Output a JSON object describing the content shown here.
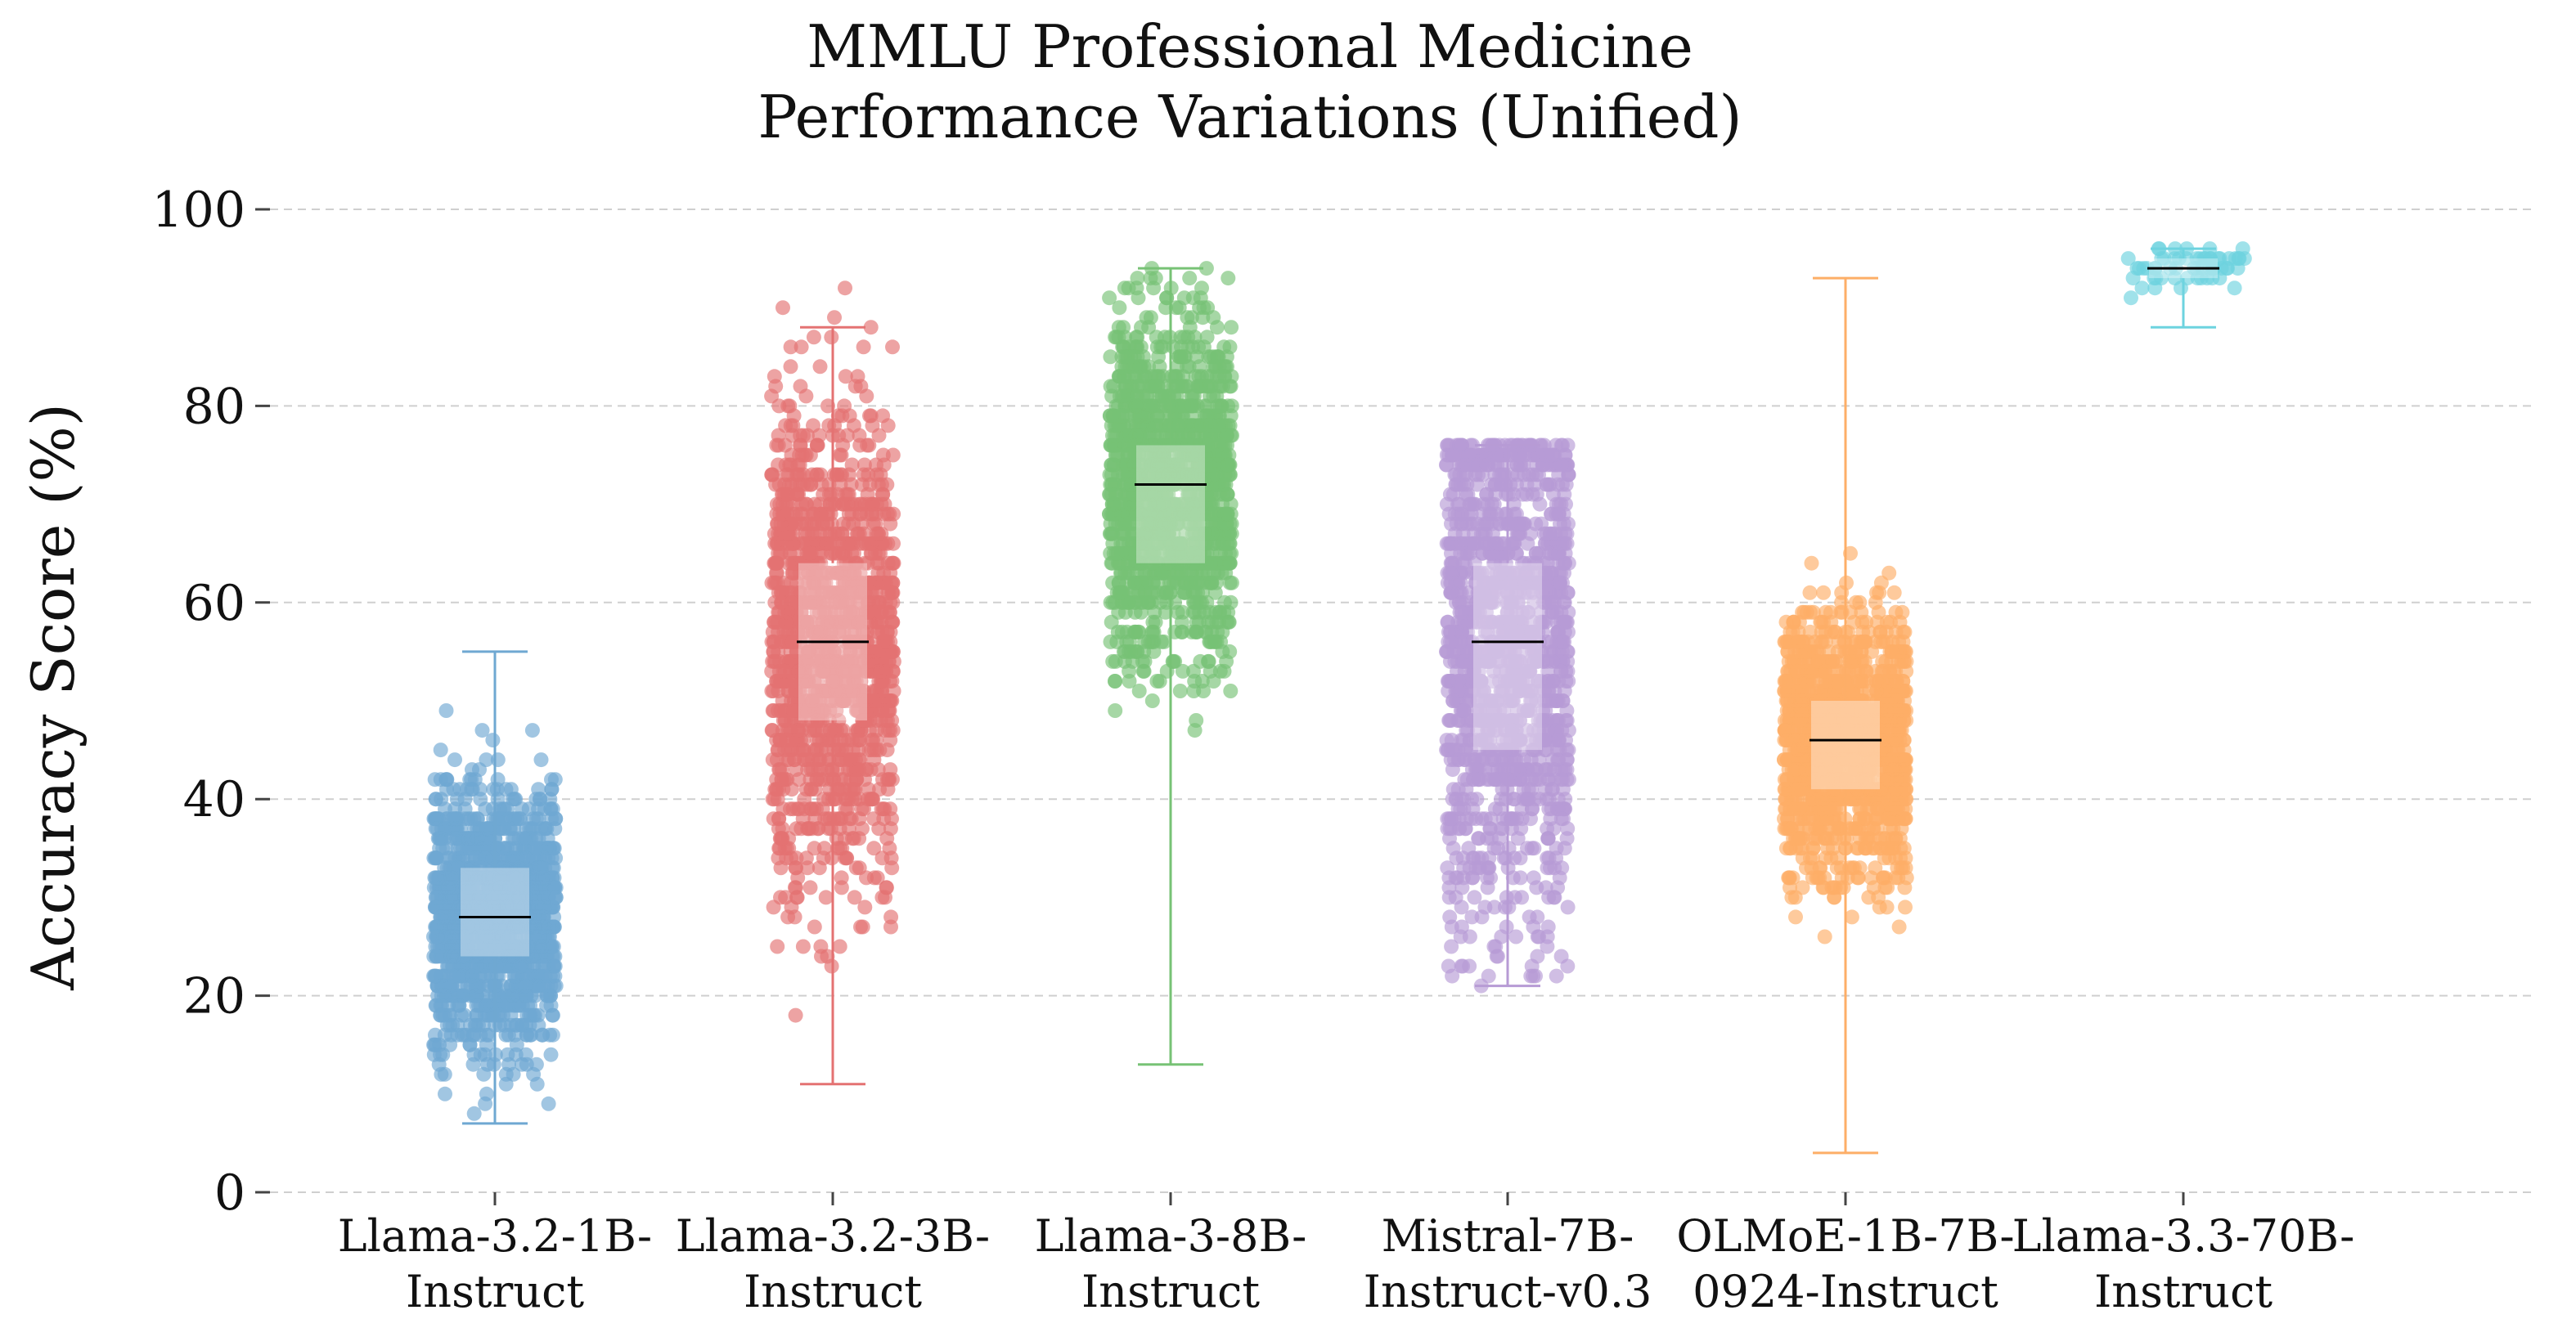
{
  "chart_data": {
    "type": "scatter",
    "subtype": "strip-plot-with-box",
    "title": [
      "MMLU Professional Medicine",
      "Performance Variations (Unified)"
    ],
    "xlabel": "",
    "ylabel": "Accuracy Score (%)",
    "ylim": [
      0,
      100
    ],
    "yticks": [
      0,
      20,
      40,
      60,
      80,
      100
    ],
    "grid": "horizontal dashed",
    "legend": "none",
    "categories": [
      [
        "Llama-3.2-1B-",
        "Instruct"
      ],
      [
        "Llama-3.2-3B-",
        "Instruct"
      ],
      [
        "Llama-3-8B-",
        "Instruct"
      ],
      [
        "Mistral-7B-",
        "Instruct-v0.3"
      ],
      [
        "OLMoE-1B-7B-",
        "0924-Instruct"
      ],
      [
        "Llama-3.3-70B-",
        "Instruct"
      ]
    ],
    "series": [
      {
        "color": "#6fa8d2",
        "median": 28,
        "q1": 24,
        "q3": 33,
        "whisker_low": 7,
        "whisker_high": 55,
        "min": 7,
        "max": 55,
        "n_points": 1400
      },
      {
        "color": "#e47272",
        "median": 56,
        "q1": 48,
        "q3": 64,
        "whisker_low": 11,
        "whisker_high": 88,
        "min": 11,
        "max": 92,
        "n_points": 1400
      },
      {
        "color": "#77c275",
        "median": 72,
        "q1": 64,
        "q3": 76,
        "whisker_low": 13,
        "whisker_high": 94,
        "min": 13,
        "max": 94,
        "n_points": 1400
      },
      {
        "color": "#b79bd5",
        "median": 56,
        "q1": 45,
        "q3": 64,
        "whisker_low": 21,
        "whisker_high": 76,
        "min": 21,
        "max": 76,
        "n_points": 1400
      },
      {
        "color": "#fdae67",
        "median": 46,
        "q1": 41,
        "q3": 50,
        "whisker_low": 4,
        "whisker_high": 93,
        "min": 4,
        "max": 93,
        "n_points": 1400
      },
      {
        "color": "#6dd3df",
        "median": 94,
        "q1": 93,
        "q3": 95,
        "whisker_low": 88,
        "whisker_high": 96,
        "min": 88,
        "max": 96,
        "n_points": 60
      }
    ]
  }
}
